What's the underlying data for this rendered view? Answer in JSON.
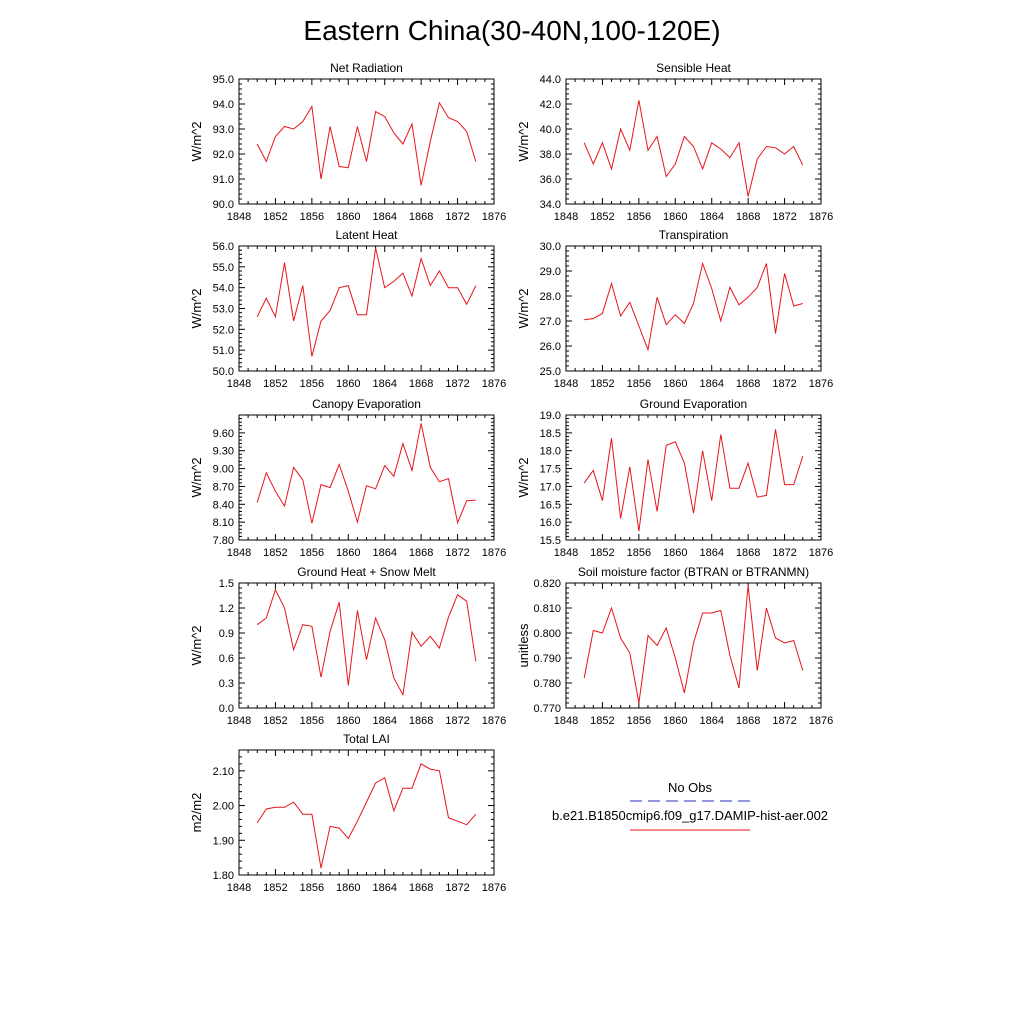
{
  "page_title": "Eastern China(30-40N,100-120E)",
  "colors": {
    "model_line": "#e8141c",
    "obs_line": "#2b2bbf",
    "axis": "#000000"
  },
  "legend": {
    "obs_label": "No Obs",
    "model_label": "b.e21.B1850cmip6.f09_g17.DAMIP-hist-aer.002"
  },
  "chart_data": [
    {
      "type": "line",
      "title": "Net Radiation",
      "ylabel": "W/m^2",
      "xlim": [
        1848,
        1876
      ],
      "ylim": [
        90.0,
        95.0
      ],
      "xticks": [
        1848,
        1852,
        1856,
        1860,
        1864,
        1868,
        1872,
        1876
      ],
      "yticks": [
        "90.0",
        "91.0",
        "92.0",
        "93.0",
        "94.0",
        "95.0"
      ],
      "x": [
        1850,
        1851,
        1852,
        1853,
        1854,
        1855,
        1856,
        1857,
        1858,
        1859,
        1860,
        1861,
        1862,
        1863,
        1864,
        1865,
        1866,
        1867,
        1868,
        1869,
        1870,
        1871,
        1872,
        1873,
        1874
      ],
      "series": [
        {
          "values": [
            92.4,
            91.7,
            92.7,
            93.1,
            93.0,
            93.3,
            93.9,
            91.0,
            93.1,
            91.5,
            91.45,
            93.1,
            91.7,
            93.7,
            93.5,
            92.85,
            92.4,
            93.2,
            90.75,
            92.5,
            94.05,
            93.45,
            93.3,
            92.9,
            91.7
          ]
        }
      ]
    },
    {
      "type": "line",
      "title": "Sensible Heat",
      "ylabel": "W/m^2",
      "xlim": [
        1848,
        1876
      ],
      "ylim": [
        34.0,
        44.0
      ],
      "xticks": [
        1848,
        1852,
        1856,
        1860,
        1864,
        1868,
        1872,
        1876
      ],
      "yticks": [
        "34.0",
        "36.0",
        "38.0",
        "40.0",
        "42.0",
        "44.0"
      ],
      "x": [
        1850,
        1851,
        1852,
        1853,
        1854,
        1855,
        1856,
        1857,
        1858,
        1859,
        1860,
        1861,
        1862,
        1863,
        1864,
        1865,
        1866,
        1867,
        1868,
        1869,
        1870,
        1871,
        1872,
        1873,
        1874
      ],
      "series": [
        {
          "values": [
            38.9,
            37.2,
            38.9,
            36.8,
            40.0,
            38.3,
            42.3,
            38.3,
            39.4,
            36.2,
            37.2,
            39.4,
            38.6,
            36.8,
            38.9,
            38.4,
            37.7,
            38.9,
            34.6,
            37.6,
            38.6,
            38.5,
            38.0,
            38.6,
            37.1
          ]
        }
      ]
    },
    {
      "type": "line",
      "title": "Latent Heat",
      "ylabel": "W/m^2",
      "xlim": [
        1848,
        1876
      ],
      "ylim": [
        50.0,
        56.0
      ],
      "xticks": [
        1848,
        1852,
        1856,
        1860,
        1864,
        1868,
        1872,
        1876
      ],
      "yticks": [
        "50.0",
        "51.0",
        "52.0",
        "53.0",
        "54.0",
        "55.0",
        "56.0"
      ],
      "x": [
        1850,
        1851,
        1852,
        1853,
        1854,
        1855,
        1856,
        1857,
        1858,
        1859,
        1860,
        1861,
        1862,
        1863,
        1864,
        1865,
        1866,
        1867,
        1868,
        1869,
        1870,
        1871,
        1872,
        1873,
        1874
      ],
      "series": [
        {
          "values": [
            52.6,
            53.5,
            52.6,
            55.2,
            52.4,
            54.1,
            50.7,
            52.4,
            52.9,
            54.0,
            54.1,
            52.7,
            52.7,
            55.9,
            54.0,
            54.3,
            54.7,
            53.6,
            55.4,
            54.1,
            54.8,
            54.0,
            54.0,
            53.2,
            54.1
          ]
        }
      ]
    },
    {
      "type": "line",
      "title": "Transpiration",
      "ylabel": "W/m^2",
      "xlim": [
        1848,
        1876
      ],
      "ylim": [
        25.0,
        30.0
      ],
      "xticks": [
        1848,
        1852,
        1856,
        1860,
        1864,
        1868,
        1872,
        1876
      ],
      "yticks": [
        "25.0",
        "26.0",
        "27.0",
        "28.0",
        "29.0",
        "30.0"
      ],
      "x": [
        1850,
        1851,
        1852,
        1853,
        1854,
        1855,
        1856,
        1857,
        1858,
        1859,
        1860,
        1861,
        1862,
        1863,
        1864,
        1865,
        1866,
        1867,
        1868,
        1869,
        1870,
        1871,
        1872,
        1873,
        1874
      ],
      "series": [
        {
          "values": [
            27.05,
            27.1,
            27.3,
            28.5,
            27.2,
            27.75,
            26.8,
            25.85,
            27.95,
            26.85,
            27.25,
            26.9,
            27.7,
            29.3,
            28.3,
            27.0,
            28.35,
            27.65,
            27.95,
            28.35,
            29.3,
            26.5,
            28.9,
            27.6,
            27.7
          ]
        }
      ]
    },
    {
      "type": "line",
      "title": "Canopy Evaporation",
      "ylabel": "W/m^2",
      "xlim": [
        1848,
        1876
      ],
      "ylim": [
        7.8,
        9.9
      ],
      "xticks": [
        1848,
        1852,
        1856,
        1860,
        1864,
        1868,
        1872,
        1876
      ],
      "yticks": [
        "7.80",
        "8.10",
        "8.40",
        "8.70",
        "9.00",
        "9.30",
        "9.60"
      ],
      "x": [
        1850,
        1851,
        1852,
        1853,
        1854,
        1855,
        1856,
        1857,
        1858,
        1859,
        1860,
        1861,
        1862,
        1863,
        1864,
        1865,
        1866,
        1867,
        1868,
        1869,
        1870,
        1871,
        1872,
        1873,
        1874
      ],
      "series": [
        {
          "values": [
            8.43,
            8.93,
            8.62,
            8.37,
            9.02,
            8.81,
            8.08,
            8.73,
            8.68,
            9.07,
            8.62,
            8.1,
            8.71,
            8.66,
            9.05,
            8.87,
            9.42,
            8.97,
            9.76,
            9.02,
            8.78,
            8.83,
            8.09,
            8.46,
            8.47
          ]
        }
      ]
    },
    {
      "type": "line",
      "title": "Ground Evaporation",
      "ylabel": "W/m^2",
      "xlim": [
        1848,
        1876
      ],
      "ylim": [
        15.5,
        19.0
      ],
      "xticks": [
        1848,
        1852,
        1856,
        1860,
        1864,
        1868,
        1872,
        1876
      ],
      "yticks": [
        "15.5",
        "16.0",
        "16.5",
        "17.0",
        "17.5",
        "18.0",
        "18.5",
        "19.0"
      ],
      "x": [
        1850,
        1851,
        1852,
        1853,
        1854,
        1855,
        1856,
        1857,
        1858,
        1859,
        1860,
        1861,
        1862,
        1863,
        1864,
        1865,
        1866,
        1867,
        1868,
        1869,
        1870,
        1871,
        1872,
        1873,
        1874
      ],
      "series": [
        {
          "values": [
            17.1,
            17.45,
            16.6,
            18.35,
            16.1,
            17.55,
            15.75,
            17.75,
            16.3,
            18.15,
            18.25,
            17.65,
            16.25,
            18.0,
            16.6,
            18.45,
            16.95,
            16.95,
            17.65,
            16.7,
            16.75,
            18.6,
            17.05,
            17.05,
            17.85
          ]
        }
      ]
    },
    {
      "type": "line",
      "title": "Ground Heat + Snow Melt",
      "ylabel": "W/m^2",
      "xlim": [
        1848,
        1876
      ],
      "ylim": [
        0.0,
        1.5
      ],
      "xticks": [
        1848,
        1852,
        1856,
        1860,
        1864,
        1868,
        1872,
        1876
      ],
      "yticks": [
        "0.0",
        "0.3",
        "0.6",
        "0.9",
        "1.2",
        "1.5"
      ],
      "x": [
        1850,
        1851,
        1852,
        1853,
        1854,
        1855,
        1856,
        1857,
        1858,
        1859,
        1860,
        1861,
        1862,
        1863,
        1864,
        1865,
        1866,
        1867,
        1868,
        1869,
        1870,
        1871,
        1872,
        1873,
        1874
      ],
      "series": [
        {
          "values": [
            1.0,
            1.08,
            1.42,
            1.2,
            0.7,
            1.0,
            0.98,
            0.37,
            0.92,
            1.27,
            0.27,
            1.17,
            0.58,
            1.08,
            0.82,
            0.36,
            0.16,
            0.91,
            0.74,
            0.86,
            0.72,
            1.09,
            1.36,
            1.28,
            0.56
          ]
        }
      ]
    },
    {
      "type": "line",
      "title": "Soil moisture factor (BTRAN or BTRANMN)",
      "ylabel": "unitless",
      "xlim": [
        1848,
        1876
      ],
      "ylim": [
        0.77,
        0.82
      ],
      "xticks": [
        1848,
        1852,
        1856,
        1860,
        1864,
        1868,
        1872,
        1876
      ],
      "yticks": [
        "0.770",
        "0.780",
        "0.790",
        "0.800",
        "0.810",
        "0.820"
      ],
      "x": [
        1850,
        1851,
        1852,
        1853,
        1854,
        1855,
        1856,
        1857,
        1858,
        1859,
        1860,
        1861,
        1862,
        1863,
        1864,
        1865,
        1866,
        1867,
        1868,
        1869,
        1870,
        1871,
        1872,
        1873,
        1874
      ],
      "series": [
        {
          "values": [
            0.782,
            0.801,
            0.8,
            0.81,
            0.798,
            0.792,
            0.772,
            0.799,
            0.795,
            0.802,
            0.79,
            0.776,
            0.796,
            0.808,
            0.808,
            0.809,
            0.791,
            0.778,
            0.819,
            0.785,
            0.81,
            0.798,
            0.796,
            0.797,
            0.785
          ]
        }
      ]
    },
    {
      "type": "line",
      "title": "Total LAI",
      "ylabel": "m2/m2",
      "xlim": [
        1848,
        1876
      ],
      "ylim": [
        1.8,
        2.16
      ],
      "xticks": [
        1848,
        1852,
        1856,
        1860,
        1864,
        1868,
        1872,
        1876
      ],
      "yticks": [
        "1.80",
        "1.90",
        "2.00",
        "2.10"
      ],
      "x": [
        1850,
        1851,
        1852,
        1853,
        1854,
        1855,
        1856,
        1857,
        1858,
        1859,
        1860,
        1861,
        1862,
        1863,
        1864,
        1865,
        1866,
        1867,
        1868,
        1869,
        1870,
        1871,
        1872,
        1873,
        1874
      ],
      "series": [
        {
          "values": [
            1.95,
            1.99,
            1.995,
            1.995,
            2.01,
            1.975,
            1.975,
            1.82,
            1.94,
            1.935,
            1.905,
            1.955,
            2.01,
            2.065,
            2.08,
            1.985,
            2.05,
            2.05,
            2.12,
            2.105,
            2.1,
            1.965,
            1.955,
            1.945,
            1.975
          ]
        }
      ]
    }
  ]
}
